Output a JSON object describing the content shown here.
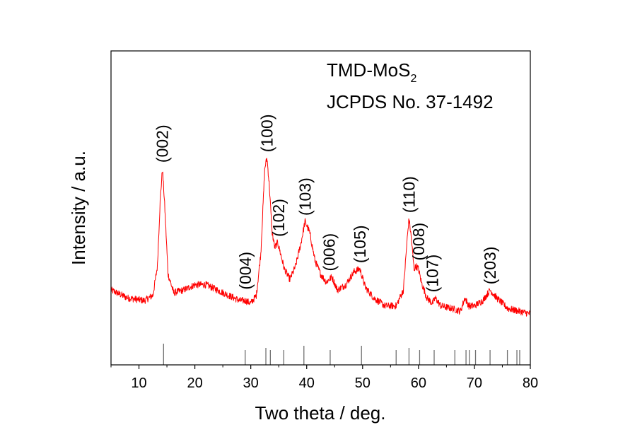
{
  "chart_data": {
    "type": "line",
    "title": "",
    "xlabel": "Two theta / deg.",
    "ylabel": "Intensity / a.u.",
    "xlim": [
      5,
      80
    ],
    "ylim": [
      0,
      100
    ],
    "x_ticks": [
      10,
      20,
      30,
      40,
      50,
      60,
      70,
      80
    ],
    "y_ticks_shown": false,
    "grid": false,
    "legend": {
      "placement": "top-right",
      "line1": "TMD-MoS",
      "line1_subscript": "2",
      "line2": "JCPDS No. 37-1492"
    },
    "series_color": "#ff0000",
    "reference_color": "#707070",
    "series": [
      {
        "x": [
          5,
          8,
          11,
          12.5,
          13.3,
          13.8,
          14.2,
          14.6,
          15.2,
          16.2,
          18,
          20,
          22,
          24,
          26,
          28,
          29,
          30,
          31,
          31.8,
          32.5,
          32.9,
          33.3,
          33.8,
          34.3,
          34.8,
          35.3,
          36,
          37,
          38,
          39,
          39.7,
          40.5,
          41.5,
          42.5,
          43.5,
          44.5,
          45.5,
          47,
          48.5,
          49.5,
          50.5,
          52,
          54,
          56,
          57.3,
          58,
          58.3,
          58.7,
          59.2,
          59.6,
          60,
          60.5,
          61.5,
          62.5,
          63,
          64,
          66,
          67.5,
          68.3,
          69,
          70,
          71.5,
          72.8,
          74,
          76,
          78,
          80
        ],
        "y": [
          16,
          13,
          12,
          14,
          25,
          50,
          62,
          48,
          22,
          15,
          16,
          18,
          18,
          16,
          14,
          12,
          12,
          11,
          14,
          30,
          62,
          66,
          56,
          38,
          32,
          34,
          30,
          24,
          20,
          25,
          34,
          42,
          38,
          27,
          22,
          19,
          21,
          16,
          18,
          23,
          24,
          17,
          13,
          10,
          10,
          16,
          36,
          43,
          36,
          24,
          25,
          24,
          19,
          13,
          11,
          13,
          10,
          9,
          8,
          13,
          10,
          10,
          12,
          16,
          13,
          9,
          8,
          7
        ]
      }
    ],
    "peaks": [
      {
        "label": "(002)",
        "x": 14.2,
        "y": 62
      },
      {
        "label": "(004)",
        "x": 29.0,
        "y": 14
      },
      {
        "label": "(100)",
        "x": 32.9,
        "y": 66
      },
      {
        "label": "(102)",
        "x": 35.0,
        "y": 34
      },
      {
        "label": "(103)",
        "x": 39.7,
        "y": 42
      },
      {
        "label": "(006)",
        "x": 44.0,
        "y": 21
      },
      {
        "label": "(105)",
        "x": 49.5,
        "y": 24
      },
      {
        "label": "(110)",
        "x": 58.3,
        "y": 43
      },
      {
        "label": "(008)",
        "x": 60.0,
        "y": 25
      },
      {
        "label": "(107)",
        "x": 62.5,
        "y": 13
      },
      {
        "label": "(203)",
        "x": 72.8,
        "y": 16
      }
    ],
    "reference_lines": [
      {
        "x": 14.4,
        "h": 1.0
      },
      {
        "x": 29.0,
        "h": 0.7
      },
      {
        "x": 32.7,
        "h": 0.8
      },
      {
        "x": 33.5,
        "h": 0.7
      },
      {
        "x": 35.9,
        "h": 0.7
      },
      {
        "x": 39.5,
        "h": 0.9
      },
      {
        "x": 44.2,
        "h": 0.7
      },
      {
        "x": 49.8,
        "h": 0.9
      },
      {
        "x": 56.0,
        "h": 0.7
      },
      {
        "x": 58.3,
        "h": 0.8
      },
      {
        "x": 60.2,
        "h": 0.7
      },
      {
        "x": 62.8,
        "h": 0.7
      },
      {
        "x": 66.5,
        "h": 0.7
      },
      {
        "x": 68.5,
        "h": 0.7
      },
      {
        "x": 69.1,
        "h": 0.7
      },
      {
        "x": 70.2,
        "h": 0.7
      },
      {
        "x": 72.8,
        "h": 0.7
      },
      {
        "x": 75.9,
        "h": 0.7
      },
      {
        "x": 77.6,
        "h": 0.7
      },
      {
        "x": 78.1,
        "h": 0.7
      }
    ]
  }
}
